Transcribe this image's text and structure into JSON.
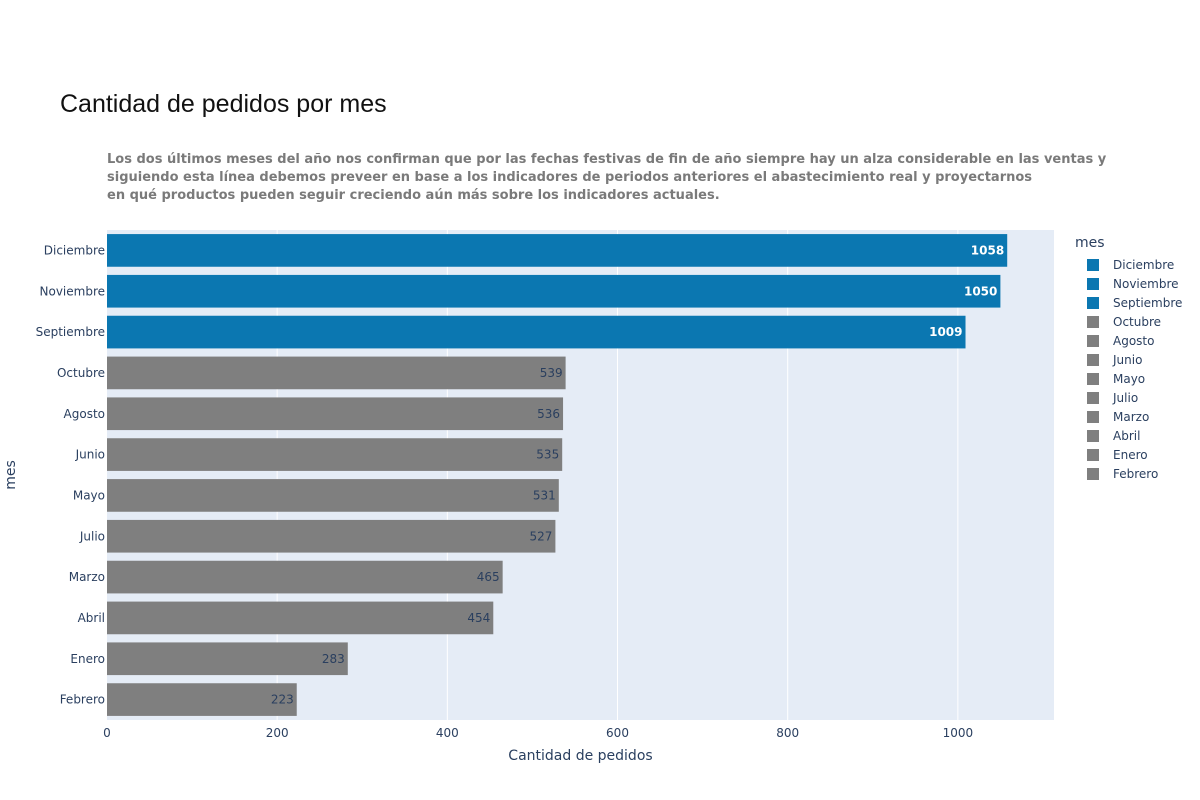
{
  "chart_data": {
    "type": "bar",
    "orientation": "horizontal",
    "title": "Cantidad de pedidos por mes",
    "subtitle_lines": [
      "Los dos últimos meses del año nos confirman que por las fechas festivas de fin de año siempre hay un alza considerable en las ventas y",
      "siguiendo esta línea debemos preveer en base a los indicadores de periodos anteriores el abastecimiento real y proyectarnos",
      "en qué productos pueden seguir creciendo aún más sobre los indicadores actuales."
    ],
    "xlabel": "Cantidad de pedidos",
    "ylabel": "mes",
    "xlim": [
      0,
      1113
    ],
    "xticks": [
      0,
      200,
      400,
      600,
      800,
      1000
    ],
    "grid": true,
    "legend_title": "mes",
    "legend_position": "right",
    "categories": [
      "Diciembre",
      "Noviembre",
      "Septiembre",
      "Octubre",
      "Agosto",
      "Junio",
      "Mayo",
      "Julio",
      "Marzo",
      "Abril",
      "Enero",
      "Febrero"
    ],
    "values": [
      1058,
      1050,
      1009,
      539,
      536,
      535,
      531,
      527,
      465,
      454,
      283,
      223
    ],
    "colors": [
      "#0b77b1",
      "#0b77b1",
      "#0b77b1",
      "#7f7f7f",
      "#7f7f7f",
      "#7f7f7f",
      "#7f7f7f",
      "#7f7f7f",
      "#7f7f7f",
      "#7f7f7f",
      "#7f7f7f",
      "#7f7f7f"
    ],
    "label_colors": [
      "#ffffff",
      "#ffffff",
      "#ffffff",
      "#2a3f5f",
      "#2a3f5f",
      "#2a3f5f",
      "#2a3f5f",
      "#2a3f5f",
      "#2a3f5f",
      "#2a3f5f",
      "#2a3f5f",
      "#2a3f5f"
    ],
    "plot_background": "#e5ecf6",
    "gridline_color": "#ffffff"
  }
}
